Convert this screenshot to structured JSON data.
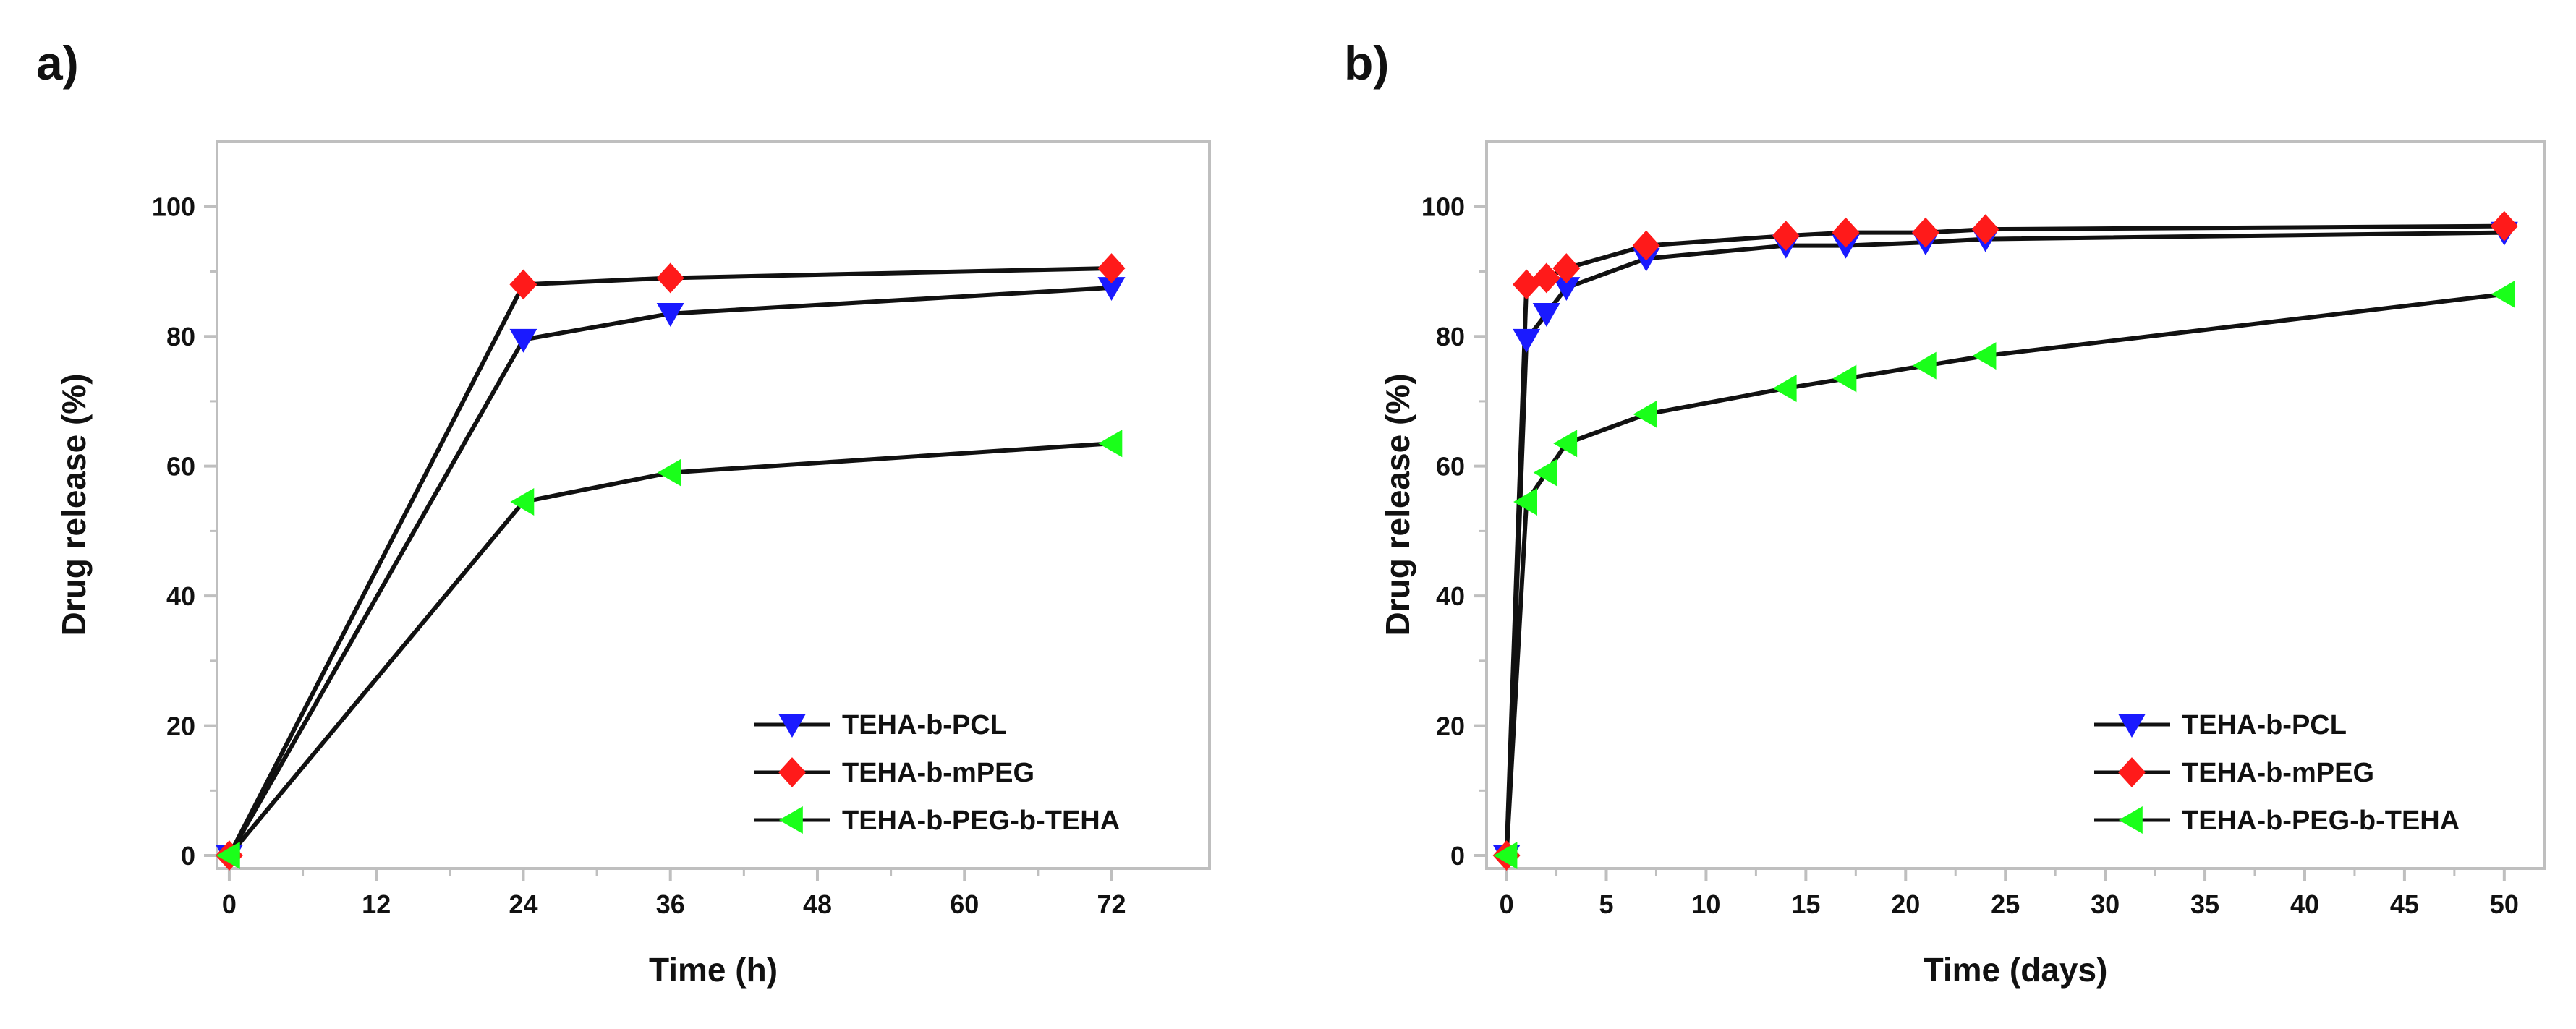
{
  "chart_data": [
    {
      "panel": "a)",
      "type": "line",
      "xlabel": "Time (h)",
      "ylabel": "Drug release (%)",
      "xlim": [
        -1,
        80
      ],
      "ylim": [
        -2,
        110
      ],
      "xticks": [
        0,
        12,
        24,
        36,
        48,
        60,
        72
      ],
      "xtick_labels": [
        "0",
        "12",
        "24",
        "36",
        "48",
        "60",
        "72"
      ],
      "xminor_step": 6,
      "yticks": [
        0,
        20,
        40,
        60,
        80,
        100
      ],
      "ytick_labels": [
        "0",
        "20",
        "40",
        "60",
        "80",
        "100"
      ],
      "yminor_step": 10,
      "legend_position": "bottom-right",
      "series": [
        {
          "name": "TEHA-b-PCL",
          "color": "#1a1aff",
          "marker": "triangle-down",
          "x": [
            0,
            24,
            36,
            72
          ],
          "y": [
            0,
            79.5,
            83.5,
            87.5
          ]
        },
        {
          "name": "TEHA-b-mPEG",
          "color": "#ff1a1a",
          "marker": "diamond",
          "x": [
            0,
            24,
            36,
            72
          ],
          "y": [
            0,
            88,
            89,
            90.5
          ]
        },
        {
          "name": "TEHA-b-PEG-b-TEHA",
          "color": "#1aff1a",
          "marker": "triangle-left",
          "x": [
            0,
            24,
            36,
            72
          ],
          "y": [
            0,
            54.5,
            59,
            63.5
          ]
        }
      ]
    },
    {
      "panel": "b)",
      "type": "line",
      "xlabel": "Time (days)",
      "ylabel": "Drug release (%)",
      "xlim": [
        -1,
        52
      ],
      "ylim": [
        -2,
        110
      ],
      "xticks": [
        0,
        5,
        10,
        15,
        20,
        25,
        30,
        35,
        40,
        45,
        50
      ],
      "xtick_labels": [
        "0",
        "5",
        "10",
        "15",
        "20",
        "25",
        "30",
        "35",
        "40",
        "45",
        "50"
      ],
      "xminor_step": 2.5,
      "yticks": [
        0,
        20,
        40,
        60,
        80,
        100
      ],
      "ytick_labels": [
        "0",
        "20",
        "40",
        "60",
        "80",
        "100"
      ],
      "yminor_step": 10,
      "legend_position": "bottom-right",
      "series": [
        {
          "name": "TEHA-b-PCL",
          "color": "#1a1aff",
          "marker": "triangle-down",
          "x": [
            0,
            1,
            2,
            3,
            7,
            14,
            17,
            21,
            24,
            50
          ],
          "y": [
            0,
            79.5,
            83.5,
            87.5,
            92,
            94,
            94,
            94.5,
            95,
            96
          ]
        },
        {
          "name": "TEHA-b-mPEG",
          "color": "#ff1a1a",
          "marker": "diamond",
          "x": [
            0,
            1,
            2,
            3,
            7,
            14,
            17,
            21,
            24,
            50
          ],
          "y": [
            0,
            88,
            89,
            90.5,
            94,
            95.5,
            96,
            96,
            96.5,
            97
          ]
        },
        {
          "name": "TEHA-b-PEG-b-TEHA",
          "color": "#1aff1a",
          "marker": "triangle-left",
          "x": [
            0,
            1,
            2,
            3,
            7,
            14,
            17,
            21,
            24,
            50
          ],
          "y": [
            0,
            54.5,
            59,
            63.5,
            68,
            72,
            73.5,
            75.5,
            77,
            86.5
          ]
        }
      ]
    }
  ]
}
